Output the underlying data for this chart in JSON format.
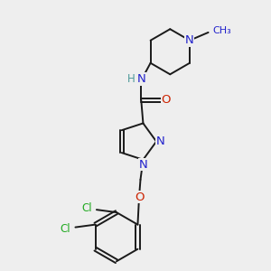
{
  "bg_color": "#eeeeee",
  "bond_color": "#1a1a1a",
  "N_color": "#2222cc",
  "O_color": "#cc2200",
  "Cl_color": "#22aa22",
  "H_color": "#4d9999",
  "bond_width": 1.4,
  "fig_w": 3.0,
  "fig_h": 3.0,
  "dpi": 100,
  "xlim": [
    0,
    10
  ],
  "ylim": [
    0,
    10
  ]
}
